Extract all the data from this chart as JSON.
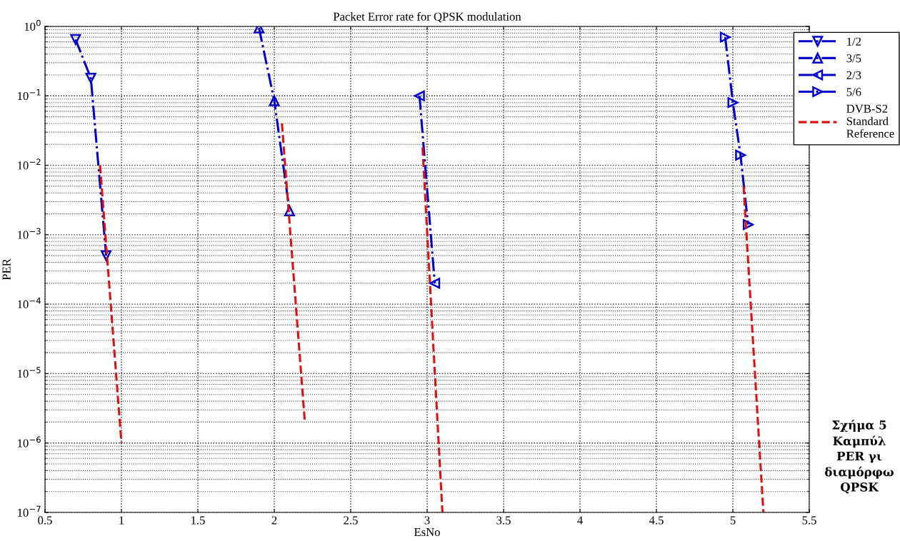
{
  "chart_data": {
    "type": "line",
    "title": "Packet Error rate for QPSK modulation",
    "xlabel": "EsNo",
    "ylabel": "PER",
    "log": "y",
    "xlim": [
      0.5,
      5.5
    ],
    "xticks": [
      0.5,
      1,
      1.5,
      2,
      2.5,
      3,
      3.5,
      4,
      4.5,
      5,
      5.5
    ],
    "ylim": [
      1e-07,
      1
    ],
    "yticks": [
      {
        "value": 1e-07,
        "label": "10$^{−7}$"
      },
      {
        "value": 1e-06,
        "label": "10$^{−6}$"
      },
      {
        "value": 1e-05,
        "label": "10$^{−5}$"
      },
      {
        "value": 0.0001,
        "label": "10$^{−4}$"
      },
      {
        "value": 0.001,
        "label": "10$^{−3}$"
      },
      {
        "value": 0.01,
        "label": "10$^{−2}$"
      },
      {
        "value": 0.1,
        "label": "10$^{−1}$"
      },
      {
        "value": 1,
        "label": "10$^{0}$"
      }
    ],
    "grid": true,
    "legend": "top right",
    "series": [
      {
        "name": "1/2",
        "color": "#0000cc",
        "marker": "triangle-down",
        "line_style": "dashdot",
        "x": [
          0.7,
          0.8,
          0.9
        ],
        "values": [
          0.65,
          0.18,
          0.0005
        ]
      },
      {
        "name": "3/5",
        "color": "#0000cc",
        "marker": "triangle",
        "line_style": "dashdot",
        "x": [
          1.9,
          2.0,
          2.1
        ],
        "values": [
          0.95,
          0.085,
          0.0022
        ]
      },
      {
        "name": "2/3",
        "color": "#0000cc",
        "marker": "triangle-left",
        "line_style": "dashdot",
        "x": [
          2.95,
          3.05
        ],
        "values": [
          0.1,
          0.0002
        ]
      },
      {
        "name": "5/6",
        "color": "#0000cc",
        "marker": "triangle-right",
        "line_style": "dashdot",
        "x": [
          4.95,
          5.0,
          5.05,
          5.1
        ],
        "values": [
          0.7,
          0.08,
          0.014,
          0.0014
        ]
      },
      {
        "name": "DVB-S2\nStandard\nReference",
        "color": "#dd1111",
        "marker": "none",
        "line_style": "dashed",
        "x": [
          0.86,
          1.0,
          1.5,
          2.05,
          2.2,
          2.6,
          2.97,
          3.1,
          4.0,
          5.07,
          5.2
        ],
        "values": [
          0.01,
          1e-06,
          null,
          0.04,
          2e-06,
          null,
          0.018,
          1e-07,
          null,
          0.005,
          1e-07
        ]
      }
    ],
    "annotations": [
      "Σχήμα 5\nΚαμπύλ\nPER γι\nδιαμόρφω\nQPSK"
    ]
  }
}
